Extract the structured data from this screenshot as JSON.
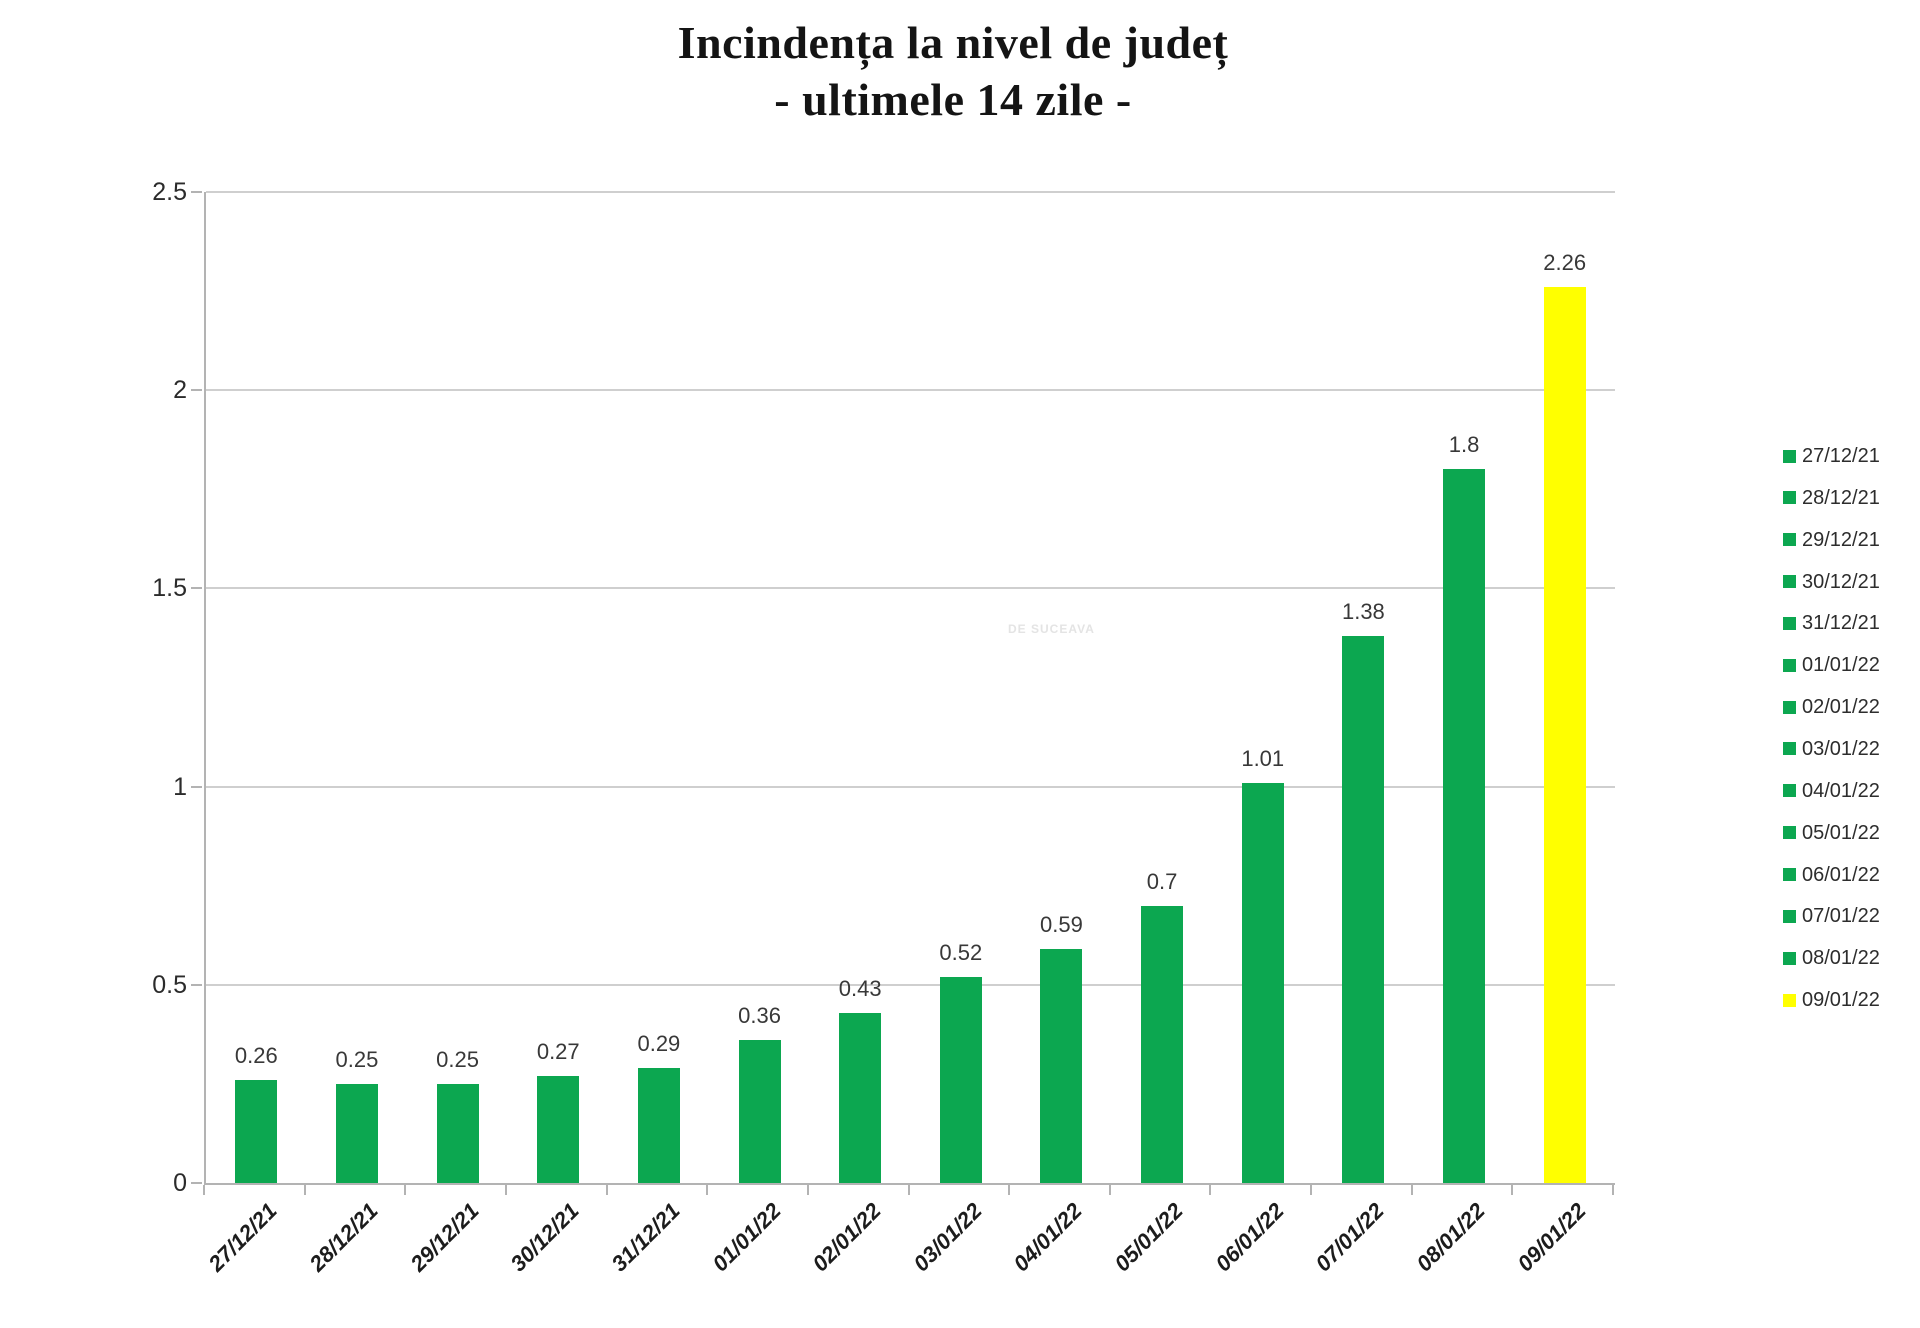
{
  "title": {
    "line1": "Incindența la nivel de județ",
    "line2": "- ultimele 14 zile -"
  },
  "watermark": "DE SUCEAVA",
  "colors": {
    "bar_green": "#0ca750",
    "bar_yellow": "#ffff00",
    "gridline": "#cfcfcf",
    "axis": "#b3b3b3",
    "text": "#2b2b2b"
  },
  "chart_data": {
    "type": "bar",
    "title": "Incindența la nivel de județ - ultimele 14 zile -",
    "xlabel": "",
    "ylabel": "",
    "ylim": [
      0,
      2.5
    ],
    "yticks": [
      0,
      0.5,
      1,
      1.5,
      2,
      2.5
    ],
    "ytick_labels": [
      "0",
      "0.5",
      "1",
      "1.5",
      "2",
      "2.5"
    ],
    "grid": true,
    "legend_position": "right",
    "categories": [
      "27/12/21",
      "28/12/21",
      "29/12/21",
      "30/12/21",
      "31/12/21",
      "01/01/22",
      "02/01/22",
      "03/01/22",
      "04/01/22",
      "05/01/22",
      "06/01/22",
      "07/01/22",
      "08/01/22",
      "09/01/22"
    ],
    "values": [
      0.26,
      0.25,
      0.25,
      0.27,
      0.29,
      0.36,
      0.43,
      0.52,
      0.59,
      0.7,
      1.01,
      1.38,
      1.8,
      2.26
    ],
    "value_labels": [
      "0.26",
      "0.25",
      "0.25",
      "0.27",
      "0.29",
      "0.36",
      "0.43",
      "0.52",
      "0.59",
      "0.7",
      "1.01",
      "1.38",
      "1.8",
      "2.26"
    ],
    "highlight_index": 13,
    "legend": [
      {
        "label": "27/12/21",
        "color": "#0ca750"
      },
      {
        "label": "28/12/21",
        "color": "#0ca750"
      },
      {
        "label": "29/12/21",
        "color": "#0ca750"
      },
      {
        "label": "30/12/21",
        "color": "#0ca750"
      },
      {
        "label": "31/12/21",
        "color": "#0ca750"
      },
      {
        "label": "01/01/22",
        "color": "#0ca750"
      },
      {
        "label": "02/01/22",
        "color": "#0ca750"
      },
      {
        "label": "03/01/22",
        "color": "#0ca750"
      },
      {
        "label": "04/01/22",
        "color": "#0ca750"
      },
      {
        "label": "05/01/22",
        "color": "#0ca750"
      },
      {
        "label": "06/01/22",
        "color": "#0ca750"
      },
      {
        "label": "07/01/22",
        "color": "#0ca750"
      },
      {
        "label": "08/01/22",
        "color": "#0ca750"
      },
      {
        "label": "09/01/22",
        "color": "#ffff00"
      }
    ]
  }
}
